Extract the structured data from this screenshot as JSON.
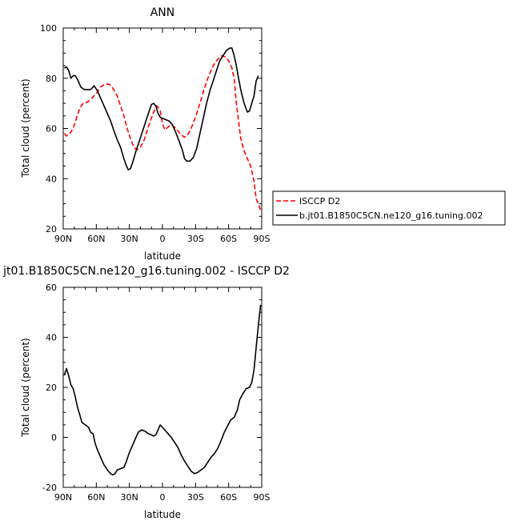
{
  "chart_data": [
    {
      "type": "line",
      "title": "ANN",
      "xlabel": "latitude",
      "ylabel": "Total cloud (percent)",
      "xlim": [
        90,
        -90
      ],
      "ylim": [
        20,
        100
      ],
      "x_ticks": [
        90,
        60,
        30,
        0,
        -30,
        -60,
        -90
      ],
      "x_tick_labels": [
        "90N",
        "60N",
        "30N",
        "0",
        "30S",
        "60S",
        "90S"
      ],
      "y_ticks": [
        20,
        40,
        60,
        80,
        100
      ],
      "y_tick_labels": [
        "20",
        "40",
        "60",
        "80",
        "100"
      ],
      "legend_position": "outside-right",
      "series": [
        {
          "name": "ISCCP D2",
          "color": "#ff0000",
          "dash": "dashed",
          "points": [
            [
              89,
              58
            ],
            [
              87,
              57
            ],
            [
              84,
              58
            ],
            [
              81,
              60
            ],
            [
              78,
              64
            ],
            [
              75,
              68
            ],
            [
              72,
              70
            ],
            [
              68,
              70.5
            ],
            [
              64,
              72
            ],
            [
              60,
              74
            ],
            [
              56,
              76.5
            ],
            [
              52,
              77.8
            ],
            [
              48,
              77.5
            ],
            [
              45,
              76
            ],
            [
              41,
              73
            ],
            [
              38,
              69
            ],
            [
              35,
              65
            ],
            [
              32,
              60
            ],
            [
              29,
              56
            ],
            [
              26,
              52.5
            ],
            [
              23,
              51.5
            ],
            [
              20,
              52.5
            ],
            [
              17,
              55
            ],
            [
              14,
              59
            ],
            [
              11,
              63
            ],
            [
              8,
              66.5
            ],
            [
              5,
              69
            ],
            [
              2,
              67
            ],
            [
              0,
              62
            ],
            [
              -2,
              59.5
            ],
            [
              -5,
              60.5
            ],
            [
              -8,
              61.5
            ],
            [
              -11,
              60.5
            ],
            [
              -14,
              59
            ],
            [
              -17,
              57.5
            ],
            [
              -20,
              56.5
            ],
            [
              -23,
              57.5
            ],
            [
              -26,
              60
            ],
            [
              -30,
              64.5
            ],
            [
              -34,
              70
            ],
            [
              -38,
              76
            ],
            [
              -42,
              81
            ],
            [
              -46,
              85
            ],
            [
              -50,
              87.5
            ],
            [
              -54,
              89
            ],
            [
              -57,
              88.5
            ],
            [
              -60,
              87
            ],
            [
              -63,
              84
            ],
            [
              -65,
              80
            ],
            [
              -67,
              70
            ],
            [
              -69,
              63
            ],
            [
              -71,
              56
            ],
            [
              -74,
              51
            ],
            [
              -77,
              48
            ],
            [
              -80,
              45
            ],
            [
              -83,
              39
            ],
            [
              -85,
              32
            ],
            [
              -87,
              30
            ],
            [
              -89,
              27.5
            ]
          ]
        },
        {
          "name": "b.jt01.B1850C5CN.ne120_g16.tuning.002",
          "color": "#000000",
          "dash": "solid",
          "points": [
            [
              89,
              84
            ],
            [
              87,
              84.5
            ],
            [
              85,
              83
            ],
            [
              83,
              80
            ],
            [
              81,
              81
            ],
            [
              79,
              81
            ],
            [
              77,
              79.5
            ],
            [
              74,
              76.5
            ],
            [
              71,
              75.5
            ],
            [
              68,
              75.5
            ],
            [
              65,
              75.5
            ],
            [
              62,
              77
            ],
            [
              59,
              75
            ],
            [
              55,
              71
            ],
            [
              51,
              67
            ],
            [
              47,
              63
            ],
            [
              44,
              59
            ],
            [
              41,
              55.5
            ],
            [
              38,
              52.5
            ],
            [
              35,
              48
            ],
            [
              33,
              45.5
            ],
            [
              31,
              43.5
            ],
            [
              29,
              44
            ],
            [
              27,
              46.5
            ],
            [
              24,
              51
            ],
            [
              21,
              55
            ],
            [
              18,
              59
            ],
            [
              15,
              63
            ],
            [
              12,
              67
            ],
            [
              10,
              69.5
            ],
            [
              8,
              70
            ],
            [
              6,
              69
            ],
            [
              4,
              66
            ],
            [
              2,
              64.5
            ],
            [
              0,
              64
            ],
            [
              -3,
              63.5
            ],
            [
              -6,
              63
            ],
            [
              -9,
              61.5
            ],
            [
              -12,
              58.5
            ],
            [
              -15,
              55
            ],
            [
              -18,
              51.5
            ],
            [
              -20,
              48
            ],
            [
              -22,
              47
            ],
            [
              -25,
              47
            ],
            [
              -28,
              48.5
            ],
            [
              -31,
              52
            ],
            [
              -34,
              58
            ],
            [
              -37,
              64
            ],
            [
              -40,
              70
            ],
            [
              -43,
              75
            ],
            [
              -46,
              79
            ],
            [
              -49,
              83
            ],
            [
              -52,
              87
            ],
            [
              -55,
              89
            ],
            [
              -58,
              91
            ],
            [
              -61,
              92
            ],
            [
              -63,
              92
            ],
            [
              -65,
              89
            ],
            [
              -67,
              85
            ],
            [
              -69,
              80
            ],
            [
              -71,
              75.5
            ],
            [
              -74,
              70
            ],
            [
              -77,
              66.5
            ],
            [
              -79,
              67
            ],
            [
              -81,
              70
            ],
            [
              -83,
              73
            ],
            [
              -85,
              79
            ],
            [
              -87,
              81
            ]
          ]
        }
      ]
    },
    {
      "type": "line",
      "title": "jt01.B1850C5CN.ne120_g16.tuning.002 - ISCCP D2",
      "xlabel": "latitude",
      "ylabel": "Total cloud (percent)",
      "xlim": [
        90,
        -90
      ],
      "ylim": [
        -20,
        60
      ],
      "x_ticks": [
        90,
        60,
        30,
        0,
        -30,
        -60,
        -90
      ],
      "x_tick_labels": [
        "90N",
        "60N",
        "30N",
        "0",
        "30S",
        "60S",
        "90S"
      ],
      "y_ticks": [
        -20,
        0,
        20,
        40,
        60
      ],
      "y_tick_labels": [
        "-20",
        "0",
        "20",
        "40",
        "60"
      ],
      "series": [
        {
          "color": "#000000",
          "dash": "solid",
          "points": [
            [
              89,
              25
            ],
            [
              87,
              27.5
            ],
            [
              85,
              24.5
            ],
            [
              83,
              21
            ],
            [
              81,
              19.5
            ],
            [
              79,
              16
            ],
            [
              77,
              12
            ],
            [
              75,
              9
            ],
            [
              73,
              6
            ],
            [
              70,
              5
            ],
            [
              67,
              4
            ],
            [
              65,
              2
            ],
            [
              63,
              1.5
            ],
            [
              61,
              -2.5
            ],
            [
              59,
              -5
            ],
            [
              56,
              -8
            ],
            [
              53,
              -11
            ],
            [
              50,
              -13
            ],
            [
              47,
              -14.5
            ],
            [
              45,
              -15
            ],
            [
              43,
              -14.5
            ],
            [
              41,
              -13
            ],
            [
              38,
              -12.5
            ],
            [
              35,
              -12
            ],
            [
              33,
              -10
            ],
            [
              30,
              -6
            ],
            [
              27,
              -3
            ],
            [
              24,
              0
            ],
            [
              22,
              2
            ],
            [
              19,
              3
            ],
            [
              16,
              2.5
            ],
            [
              13,
              1.5
            ],
            [
              10,
              1
            ],
            [
              8,
              0.5
            ],
            [
              6,
              1
            ],
            [
              4,
              3
            ],
            [
              2,
              5
            ],
            [
              0,
              4
            ],
            [
              -2,
              3
            ],
            [
              -5,
              1.5
            ],
            [
              -8,
              0
            ],
            [
              -11,
              -2
            ],
            [
              -14,
              -4
            ],
            [
              -17,
              -7
            ],
            [
              -20,
              -9.5
            ],
            [
              -23,
              -11.5
            ],
            [
              -26,
              -13.5
            ],
            [
              -29,
              -14.5
            ],
            [
              -32,
              -14
            ],
            [
              -35,
              -13
            ],
            [
              -38,
              -12
            ],
            [
              -41,
              -10
            ],
            [
              -44,
              -8
            ],
            [
              -47,
              -6.5
            ],
            [
              -50,
              -4.5
            ],
            [
              -53,
              -1.5
            ],
            [
              -56,
              2
            ],
            [
              -59,
              4.5
            ],
            [
              -62,
              7
            ],
            [
              -65,
              8
            ],
            [
              -68,
              11
            ],
            [
              -70,
              15
            ],
            [
              -73,
              17.5
            ],
            [
              -76,
              19.5
            ],
            [
              -79,
              20
            ],
            [
              -81,
              22
            ],
            [
              -83,
              27
            ],
            [
              -85,
              36
            ],
            [
              -87,
              45
            ],
            [
              -89,
              53
            ]
          ]
        }
      ]
    }
  ]
}
